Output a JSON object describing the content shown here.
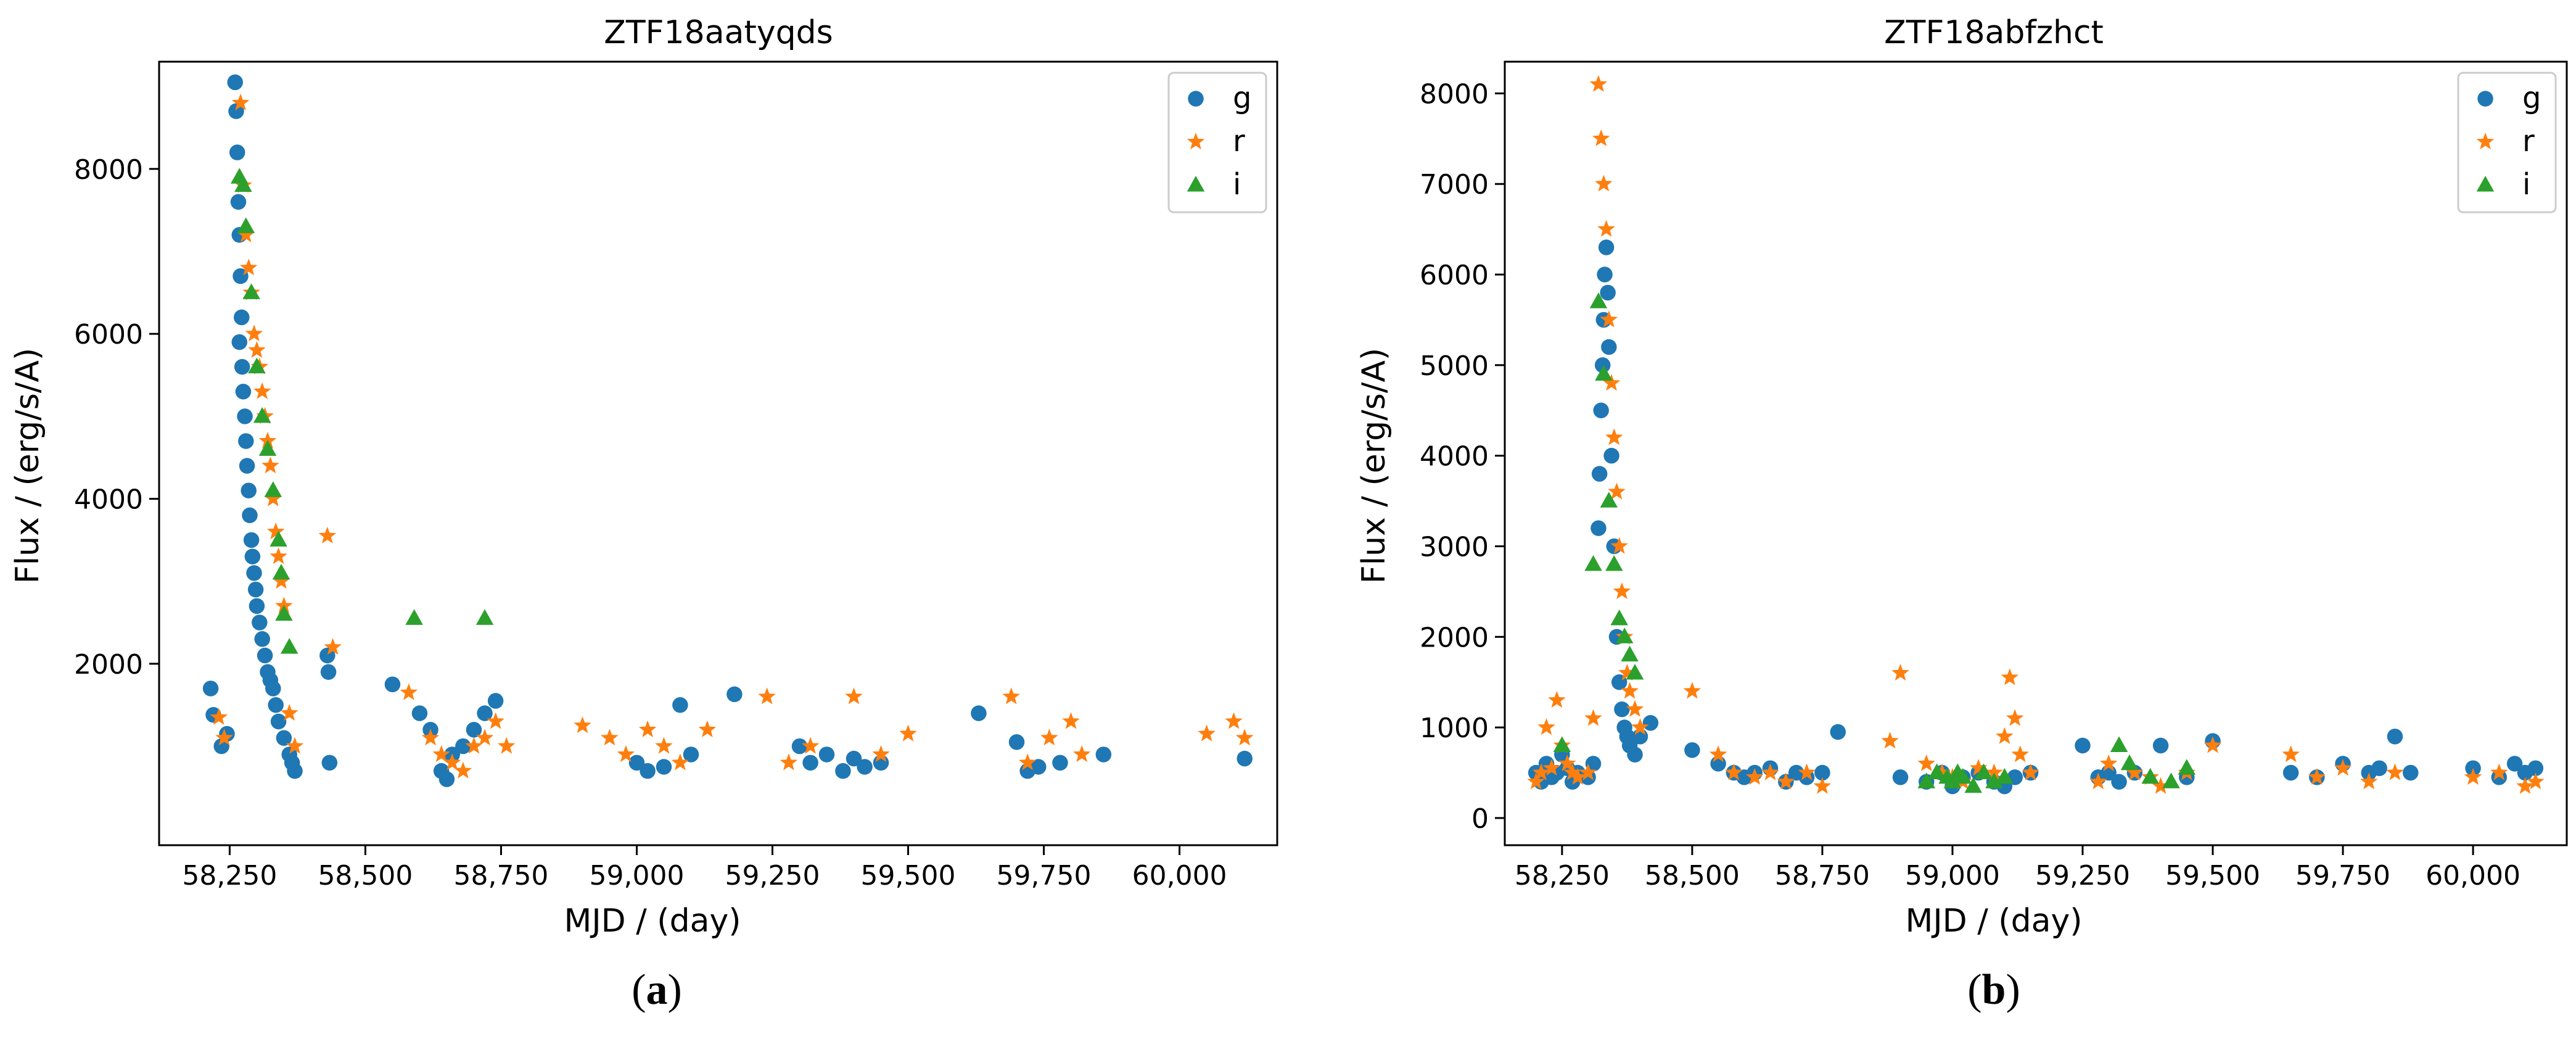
{
  "colors": {
    "g": "#1f77b4",
    "r": "#ff7f0e",
    "i": "#2ca02c"
  },
  "chart_data": [
    {
      "type": "scatter",
      "panel_label": "a",
      "title": "ZTF18aatyqds",
      "xlabel": "MJD / (day)",
      "ylabel": "Flux / (erg/s/A)",
      "xlim": [
        58120,
        60180
      ],
      "ylim": [
        -200,
        9300
      ],
      "xticks": [
        58250,
        58500,
        58750,
        59000,
        59250,
        59500,
        59750,
        60000
      ],
      "xtick_labels": [
        "58,250",
        "58,500",
        "58,750",
        "59,000",
        "59,250",
        "59,500",
        "59,750",
        "60,000"
      ],
      "yticks": [
        2000,
        4000,
        6000,
        8000
      ],
      "ytick_labels": [
        "2000",
        "4000",
        "6000",
        "8000"
      ],
      "legend": {
        "position": "top-right",
        "entries": [
          "g",
          "r",
          "i"
        ]
      },
      "series": [
        {
          "name": "g",
          "marker": "circle",
          "x": [
            58215,
            58220,
            58235,
            58245,
            58260,
            58262,
            58264,
            58266,
            58268,
            58270,
            58272,
            58268,
            58273,
            58275,
            58278,
            58280,
            58282,
            58285,
            58287,
            58290,
            58292,
            58295,
            58298,
            58300,
            58305,
            58310,
            58315,
            58320,
            58325,
            58330,
            58335,
            58340,
            58350,
            58360,
            58365,
            58370,
            58430,
            58432,
            58434,
            58550,
            58600,
            58620,
            58640,
            58650,
            58660,
            58680,
            58700,
            58720,
            58740,
            59000,
            59020,
            59050,
            59080,
            59100,
            59180,
            59300,
            59320,
            59350,
            59380,
            59400,
            59420,
            59450,
            59630,
            59700,
            59720,
            59740,
            59780,
            59860,
            60120
          ],
          "y": [
            1700,
            1380,
            1000,
            1150,
            9050,
            8700,
            8200,
            7600,
            7200,
            6700,
            6200,
            5900,
            5600,
            5300,
            5000,
            4700,
            4400,
            4100,
            3800,
            3500,
            3300,
            3100,
            2900,
            2700,
            2500,
            2300,
            2100,
            1900,
            1800,
            1700,
            1500,
            1300,
            1100,
            900,
            800,
            700,
            2100,
            1900,
            800,
            1750,
            1400,
            1200,
            700,
            600,
            900,
            1000,
            1200,
            1400,
            1550,
            800,
            700,
            750,
            1500,
            900,
            1630,
            1000,
            800,
            900,
            700,
            850,
            750,
            800,
            1400,
            1050,
            700,
            750,
            800,
            900,
            850
          ]
        },
        {
          "name": "r",
          "marker": "star",
          "x": [
            58230,
            58240,
            58270,
            58275,
            58280,
            58285,
            58290,
            58295,
            58300,
            58305,
            58310,
            58315,
            58320,
            58325,
            58330,
            58335,
            58340,
            58345,
            58350,
            58360,
            58370,
            58430,
            58440,
            58580,
            58620,
            58640,
            58660,
            58680,
            58700,
            58720,
            58740,
            58760,
            58900,
            58950,
            58980,
            59020,
            59050,
            59080,
            59130,
            59240,
            59280,
            59320,
            59400,
            59450,
            59500,
            59690,
            59720,
            59760,
            59800,
            59820,
            60050,
            60100,
            60120
          ],
          "y": [
            1350,
            1100,
            8800,
            7800,
            7200,
            6800,
            6500,
            6000,
            5800,
            5600,
            5300,
            5000,
            4700,
            4400,
            4000,
            3600,
            3300,
            3000,
            2700,
            1400,
            1000,
            3550,
            2200,
            1650,
            1100,
            900,
            800,
            700,
            1000,
            1100,
            1300,
            1000,
            1250,
            1100,
            900,
            1200,
            1000,
            800,
            1200,
            1600,
            800,
            1000,
            1600,
            900,
            1150,
            1600,
            800,
            1100,
            1300,
            900,
            1150,
            1300,
            1100
          ]
        },
        {
          "name": "i",
          "marker": "triangle",
          "x": [
            58268,
            58275,
            58280,
            58290,
            58300,
            58310,
            58320,
            58330,
            58340,
            58345,
            58350,
            58360,
            58590,
            58720
          ],
          "y": [
            7900,
            7800,
            7300,
            6500,
            5600,
            5000,
            4600,
            4100,
            3500,
            3100,
            2600,
            2200,
            2550,
            2550
          ]
        }
      ]
    },
    {
      "type": "scatter",
      "panel_label": "b",
      "title": "ZTF18abfzhct",
      "xlabel": "MJD / (day)",
      "ylabel": "Flux / (erg/s/A)",
      "xlim": [
        58140,
        60180
      ],
      "ylim": [
        -300,
        8350
      ],
      "xticks": [
        58250,
        58500,
        58750,
        59000,
        59250,
        59500,
        59750,
        60000
      ],
      "xtick_labels": [
        "58,250",
        "58,500",
        "58,750",
        "59,000",
        "59,250",
        "59,500",
        "59,750",
        "60,000"
      ],
      "yticks": [
        0,
        1000,
        2000,
        3000,
        4000,
        5000,
        6000,
        7000,
        8000
      ],
      "ytick_labels": [
        "0",
        "1000",
        "2000",
        "3000",
        "4000",
        "5000",
        "6000",
        "7000",
        "8000"
      ],
      "legend": {
        "position": "top-right",
        "entries": [
          "g",
          "r",
          "i"
        ]
      },
      "series": [
        {
          "name": "g",
          "marker": "circle",
          "x": [
            58200,
            58210,
            58220,
            58230,
            58240,
            58250,
            58260,
            58270,
            58280,
            58300,
            58310,
            58320,
            58322,
            58325,
            58328,
            58330,
            58332,
            58335,
            58338,
            58340,
            58345,
            58350,
            58355,
            58360,
            58365,
            58370,
            58375,
            58380,
            58390,
            58400,
            58420,
            58500,
            58550,
            58580,
            58600,
            58620,
            58650,
            58680,
            58700,
            58720,
            58750,
            58780,
            58900,
            58950,
            58980,
            59000,
            59020,
            59050,
            59080,
            59100,
            59120,
            59150,
            59250,
            59280,
            59300,
            59320,
            59350,
            59400,
            59450,
            59500,
            59650,
            59700,
            59750,
            59800,
            59820,
            59850,
            59880,
            60000,
            60050,
            60080,
            60100,
            60120
          ],
          "y": [
            500,
            400,
            600,
            450,
            500,
            700,
            550,
            400,
            500,
            450,
            600,
            3200,
            3800,
            4500,
            5000,
            5500,
            6000,
            6300,
            5800,
            5200,
            4000,
            3000,
            2000,
            1500,
            1200,
            1000,
            900,
            800,
            700,
            900,
            1050,
            750,
            600,
            500,
            450,
            500,
            550,
            400,
            500,
            450,
            500,
            950,
            450,
            400,
            500,
            350,
            450,
            500,
            400,
            350,
            450,
            500,
            800,
            450,
            500,
            400,
            500,
            800,
            450,
            850,
            500,
            450,
            600,
            500,
            550,
            900,
            500,
            550,
            450,
            600,
            500,
            550
          ]
        },
        {
          "name": "r",
          "marker": "star",
          "x": [
            58200,
            58210,
            58220,
            58230,
            58240,
            58250,
            58260,
            58270,
            58280,
            58300,
            58310,
            58320,
            58325,
            58330,
            58335,
            58340,
            58345,
            58350,
            58355,
            58360,
            58365,
            58370,
            58375,
            58380,
            58390,
            58400,
            58500,
            58550,
            58580,
            58620,
            58650,
            58680,
            58720,
            58750,
            58880,
            58900,
            58950,
            58980,
            59000,
            59020,
            59050,
            59080,
            59100,
            59110,
            59120,
            59130,
            59150,
            59280,
            59300,
            59350,
            59380,
            59400,
            59450,
            59500,
            59650,
            59700,
            59750,
            59800,
            59850,
            60000,
            60050,
            60100,
            60120
          ],
          "y": [
            400,
            500,
            1000,
            550,
            1300,
            800,
            600,
            500,
            450,
            500,
            1100,
            8100,
            7500,
            7000,
            6500,
            5500,
            4800,
            4200,
            3600,
            3000,
            2500,
            2000,
            1600,
            1400,
            1200,
            1000,
            1400,
            700,
            500,
            450,
            500,
            400,
            500,
            350,
            850,
            1600,
            600,
            500,
            450,
            400,
            550,
            500,
            900,
            1550,
            1100,
            700,
            500,
            400,
            600,
            500,
            450,
            350,
            500,
            800,
            700,
            450,
            550,
            400,
            500,
            450,
            500,
            350,
            400
          ]
        },
        {
          "name": "i",
          "marker": "triangle",
          "x": [
            58250,
            58310,
            58320,
            58330,
            58340,
            58350,
            58360,
            58370,
            58380,
            58390,
            58950,
            58970,
            58990,
            59000,
            59010,
            59020,
            59040,
            59060,
            59080,
            59100,
            59320,
            59340,
            59380,
            59420,
            59450
          ],
          "y": [
            800,
            2800,
            5700,
            4900,
            3500,
            2800,
            2200,
            2000,
            1800,
            1600,
            400,
            500,
            450,
            400,
            500,
            450,
            350,
            500,
            400,
            450,
            800,
            600,
            450,
            400,
            550
          ]
        }
      ]
    }
  ]
}
